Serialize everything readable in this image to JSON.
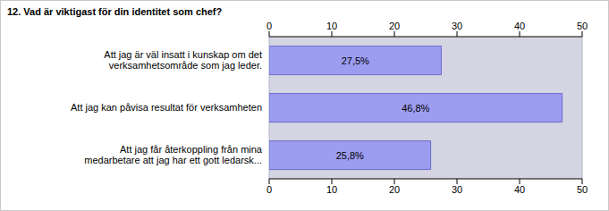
{
  "chart_data": {
    "type": "bar",
    "title": "12. Vad är viktigast för din identitet som chef?",
    "orientation": "horizontal",
    "categories": [
      "Att jag är väl insatt i kunskap om det verksamhetsområde som jag leder.",
      "Att jag kan påvisa resultat för verksamheten",
      "Att jag får återkoppling från mina medarbetare att jag har ett gott ledarsk..."
    ],
    "values": [
      27.5,
      46.8,
      25.8
    ],
    "value_labels": [
      "27,5%",
      "46,8%",
      "25,8%"
    ],
    "data_labels": true,
    "color": "#9c9cf0",
    "xlim": [
      0,
      50
    ],
    "xticks": [
      0,
      10,
      20,
      30,
      40,
      50
    ],
    "grid": true
  }
}
